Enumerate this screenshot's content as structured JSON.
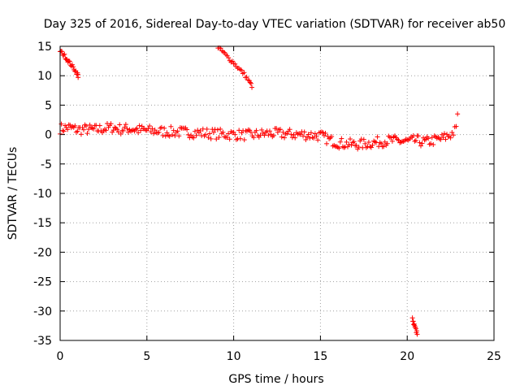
{
  "chart_data": {
    "type": "scatter",
    "title": "Day 325 of 2016, Sidereal Day-to-day VTEC variation (SDTVAR) for receiver ab50",
    "xlabel": "GPS time / hours",
    "ylabel": "SDTVAR / TECUs",
    "xlim": [
      0,
      25
    ],
    "ylim": [
      -35,
      15
    ],
    "x_ticks": [
      0,
      5,
      10,
      15,
      20,
      25
    ],
    "y_ticks": [
      15,
      10,
      5,
      0,
      -5,
      -10,
      -15,
      -20,
      -25,
      -30,
      -35
    ],
    "grid": true,
    "marker": "+",
    "color": "#ff0000",
    "series": [
      {
        "name": "band",
        "x": [
          0.0,
          0.5,
          1.0,
          1.5,
          2.0,
          2.5,
          3.0,
          3.5,
          4.0,
          4.5,
          5.0,
          6.0,
          7.0,
          8.0,
          9.0,
          10.0,
          11.0,
          12.0,
          13.0,
          14.0,
          15.0,
          15.5,
          16.0,
          16.5,
          17.0,
          17.5,
          18.0,
          18.5,
          19.0,
          19.5,
          20.0,
          20.5,
          21.0,
          21.5,
          22.0,
          22.5,
          22.9
        ],
        "y": [
          1.0,
          1.2,
          0.8,
          0.9,
          0.8,
          1.0,
          1.2,
          0.9,
          1.0,
          0.8,
          0.7,
          0.5,
          0.4,
          0.3,
          0.1,
          0.0,
          -0.1,
          0.2,
          0.1,
          0.0,
          -0.2,
          -0.9,
          -1.4,
          -1.6,
          -1.7,
          -1.6,
          -1.4,
          -1.2,
          -1.0,
          -1.1,
          -1.2,
          -1.0,
          -1.3,
          -1.0,
          -0.7,
          0.0,
          1.0
        ],
        "spread": 0.9
      },
      {
        "name": "arc-1",
        "x": [
          0.0,
          0.2,
          0.4,
          0.6,
          0.8,
          1.0,
          1.05
        ],
        "y": [
          14.2,
          13.6,
          12.8,
          12.0,
          11.2,
          10.3,
          9.8
        ],
        "spread": 0.3
      },
      {
        "name": "arc-2",
        "x": [
          9.1,
          9.4,
          9.7,
          10.0,
          10.3,
          10.6,
          10.9,
          11.1
        ],
        "y": [
          14.8,
          14.0,
          13.0,
          12.2,
          11.2,
          10.3,
          9.0,
          8.0
        ],
        "spread": 0.3
      },
      {
        "name": "drop",
        "x": [
          20.3,
          20.4,
          20.5,
          20.6
        ],
        "y": [
          -31.5,
          -32.5,
          -33.3,
          -33.8
        ],
        "spread": 0.4
      },
      {
        "name": "outlier",
        "x": [
          22.9
        ],
        "y": [
          3.5
        ],
        "spread": 0
      }
    ]
  }
}
